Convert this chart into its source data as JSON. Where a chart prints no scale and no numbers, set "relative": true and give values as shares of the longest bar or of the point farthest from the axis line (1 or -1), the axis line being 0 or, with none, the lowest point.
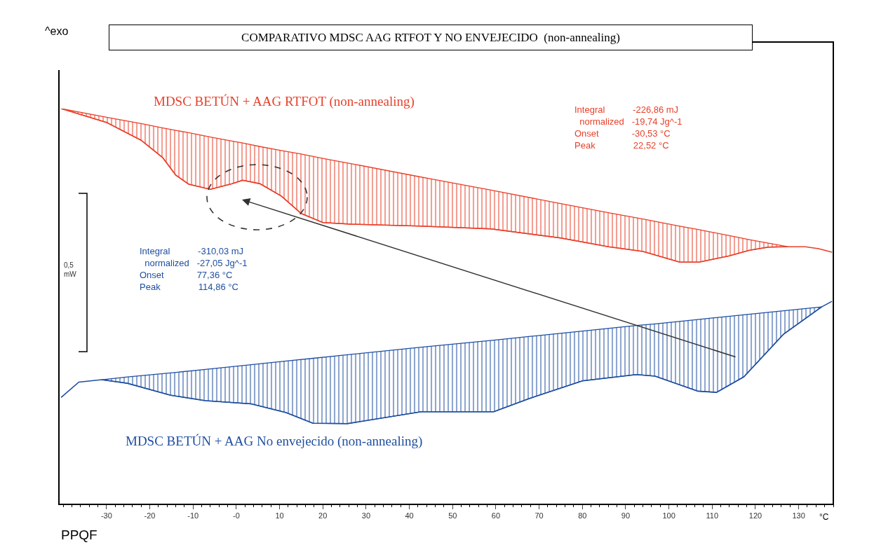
{
  "chart_data": {
    "type": "line",
    "title": "COMPARATIVO MDSC AAG RTFOT Y NO ENVEJECIDO  (non-annealing)",
    "xlabel": "°C",
    "relative": true,
    "xlim": [
      -41,
      138
    ],
    "xticks": [
      -30,
      -20,
      -10,
      {
        "value": 0,
        "label": "-0"
      },
      10,
      20,
      30,
      40,
      50,
      60,
      70,
      80,
      90,
      100,
      110,
      120,
      130
    ],
    "legend": false,
    "series": [
      {
        "type": "line",
        "name": "MDSC BETÚN + AAG RTFOT (non-annealing)",
        "color": "#e8402a",
        "x": [
          -40.5,
          -30,
          -22,
          -17,
          -14,
          -11,
          -6,
          -1,
          1.5,
          5.5,
          10.4,
          15,
          20,
          26.5,
          42.7,
          58.9,
          75,
          86,
          94,
          102.5,
          107,
          114,
          118.6,
          123,
          127.5,
          131.5,
          134.6,
          137.7
        ],
        "values": [
          1.0,
          0.965,
          0.92,
          0.876,
          0.832,
          0.809,
          0.796,
          0.81,
          0.819,
          0.81,
          0.779,
          0.735,
          0.712,
          0.708,
          0.703,
          0.696,
          0.673,
          0.651,
          0.639,
          0.612,
          0.612,
          0.628,
          0.642,
          0.65,
          0.651,
          0.651,
          0.646,
          0.637
        ],
        "lower": [
          1.0,
          0.965,
          0.92,
          0.876,
          0.832,
          0.809,
          0.796,
          0.81,
          0.819,
          0.81,
          0.779,
          0.735,
          0.712,
          0.708,
          0.703,
          0.696,
          0.673,
          0.651,
          0.639,
          0.612,
          0.612,
          0.628,
          0.642,
          0.65,
          0.651,
          null,
          null,
          null
        ],
        "upper": [
          1.0,
          0.978,
          0.962,
          0.951,
          0.945,
          0.939,
          0.928,
          0.918,
          0.913,
          0.904,
          0.894,
          0.885,
          0.874,
          0.861,
          0.827,
          0.794,
          0.76,
          0.737,
          0.721,
          0.703,
          0.694,
          0.679,
          0.669,
          0.66,
          0.651,
          null,
          null,
          null
        ]
      },
      {
        "type": "line",
        "name": "MDSC BETÚN + AAG No envejecido (non-annealing)",
        "color": "#1f4fa0",
        "x": [
          -40.5,
          -36.4,
          -31.1,
          -25.2,
          -15.3,
          -7.2,
          3.4,
          11.5,
          17.7,
          25.7,
          42.7,
          59.5,
          67.6,
          80,
          92.5,
          96.8,
          106.7,
          111,
          117.3,
          126.5,
          135.3,
          137.7
        ],
        "values": [
          0.27,
          0.309,
          0.315,
          0.306,
          0.276,
          0.262,
          0.254,
          0.232,
          0.205,
          0.204,
          0.234,
          0.234,
          0.267,
          0.312,
          0.328,
          0.324,
          0.286,
          0.283,
          0.322,
          0.43,
          0.499,
          0.513
        ],
        "lower": [
          null,
          null,
          0.315,
          0.306,
          0.276,
          0.262,
          0.254,
          0.232,
          0.205,
          0.204,
          0.234,
          0.234,
          0.267,
          0.312,
          0.328,
          0.324,
          0.286,
          0.283,
          0.322,
          0.43,
          0.499,
          null
        ],
        "upper": [
          null,
          null,
          0.315,
          0.322,
          0.332,
          0.341,
          0.353,
          0.362,
          0.369,
          0.378,
          0.397,
          0.415,
          0.424,
          0.438,
          0.452,
          0.456,
          0.467,
          0.472,
          0.479,
          0.489,
          0.499,
          null
        ]
      }
    ],
    "annotations": [
      "^exo",
      "Integral           -226,86 mJ\n  normalized   -19,74 Jg^-1\nOnset             -30,53 °C\nPeak               22,52 °C",
      "Integral           -310,03 mJ\n  normalized   -27,05 Jg^-1\nOnset             77,36 °C\nPeak               114,86 °C",
      "0,5\nmW",
      "PPQF"
    ]
  }
}
